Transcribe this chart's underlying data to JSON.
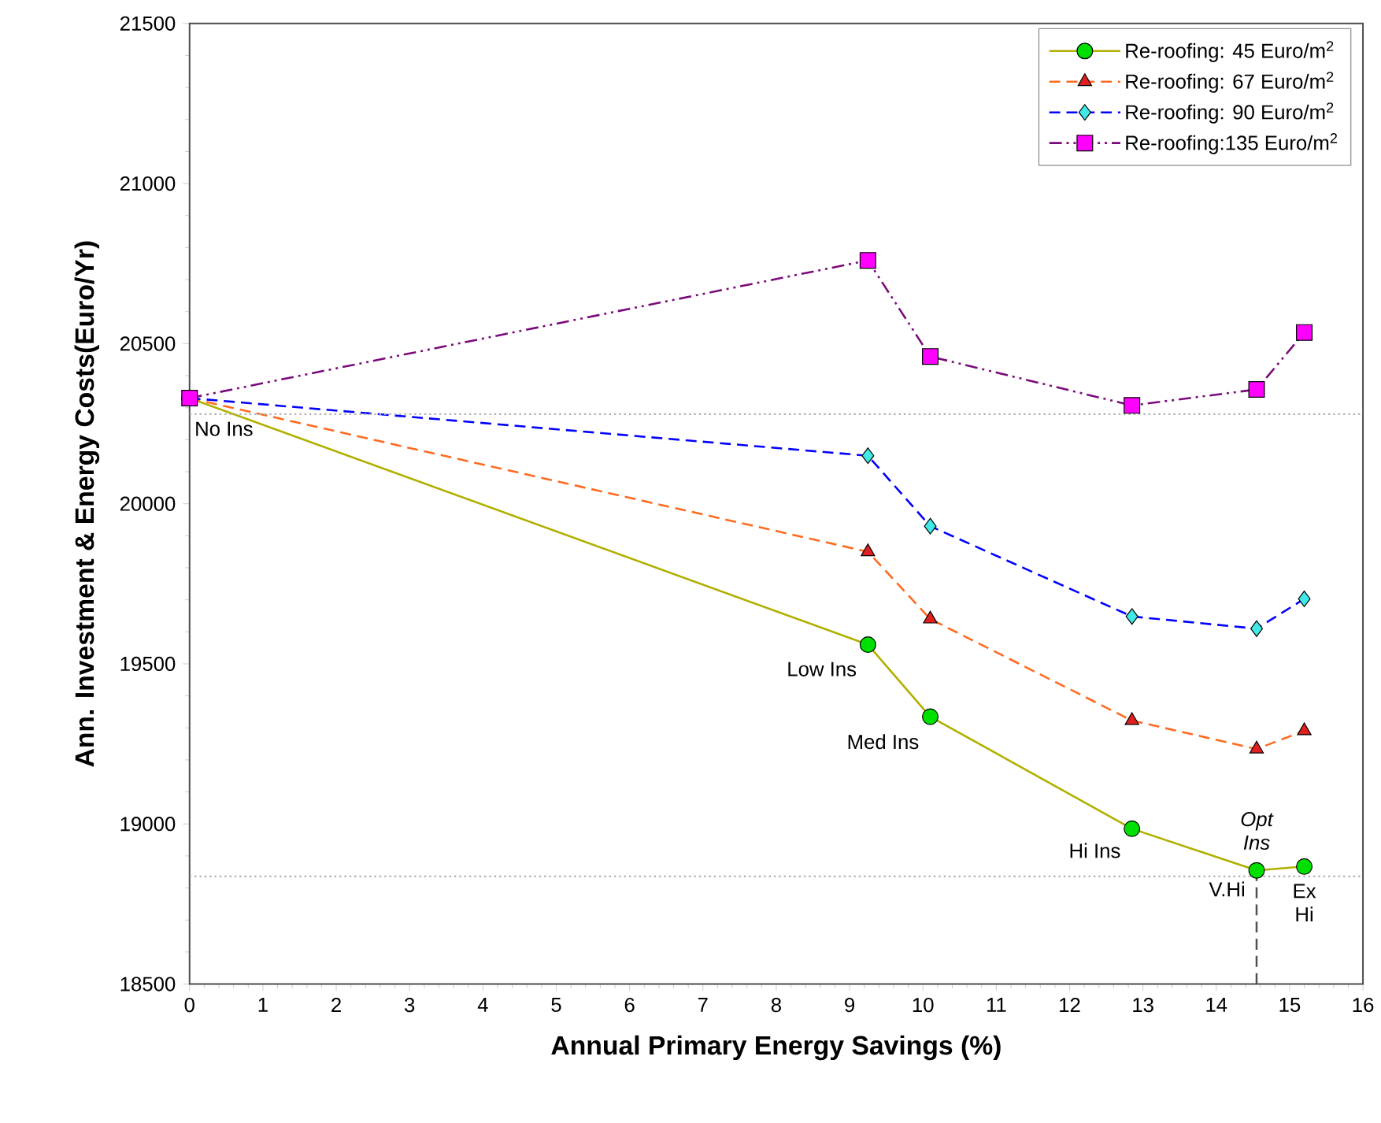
{
  "chart_data": {
    "type": "line",
    "xlabel": "Annual Primary Energy Savings (%)",
    "ylabel": "Ann. Investment & Energy Costs(Euro/Yr)",
    "xlim": [
      0,
      16
    ],
    "xticks": [
      0,
      1,
      2,
      3,
      4,
      5,
      6,
      7,
      8,
      9,
      10,
      11,
      12,
      13,
      14,
      15,
      16
    ],
    "ylim": [
      18500,
      21500
    ],
    "yticks": [
      18500,
      19000,
      19500,
      20000,
      20500,
      21000,
      21500
    ],
    "legend": "top right",
    "grid": false,
    "series": [
      {
        "name": "Re-roofing: 45 Euro/m$^{2}$",
        "color": "#b0b000",
        "line_style": "solid",
        "marker": "circle",
        "x": [
          0,
          9.25,
          10.1,
          12.85,
          14.55,
          15.2
        ],
        "values": [
          20330,
          19560,
          19335,
          18985,
          18855,
          18867
        ],
        "colors": [
          "#00e000",
          "#00e000",
          "#00e000",
          "#00e000",
          "#00e000",
          "#00e000"
        ]
      },
      {
        "name": "Re-roofing: 67 Euro/m$^{2}$",
        "color": "#ff6a20",
        "line_style": "dashed",
        "marker": "triangle",
        "x": [
          0,
          9.25,
          10.1,
          12.85,
          14.55,
          15.2
        ],
        "values": [
          20330,
          19850,
          19640,
          19323,
          19234,
          19291
        ],
        "colors": [
          "#e02020",
          "#e02020",
          "#e02020",
          "#e02020",
          "#e02020",
          "#e02020"
        ]
      },
      {
        "name": "Re-roofing: 90 Euro/m$^{2}$",
        "color": "#0000ff",
        "line_style": "dashed",
        "marker": "diamond",
        "x": [
          0,
          9.25,
          10.1,
          12.85,
          14.55,
          15.2
        ],
        "values": [
          20330,
          20150,
          19930,
          19648,
          19610,
          19703
        ],
        "colors": [
          "#40e8e8",
          "#40e8e8",
          "#40e8e8",
          "#40e8e8",
          "#40e8e8",
          "#40e8e8"
        ]
      },
      {
        "name": "Re-roofing:135 Euro/m$^{2}$",
        "color": "#7a0a7a",
        "line_style": "dashdotdotted",
        "marker": "square",
        "x": [
          0,
          9.25,
          10.1,
          12.85,
          14.55,
          15.2
        ],
        "values": [
          20330,
          20760,
          20460,
          20307,
          20357,
          20535
        ],
        "colors": [
          "#ff00ff",
          "#ff00ff",
          "#ff00ff",
          "#ff00ff",
          "#ff00ff",
          "#ff00ff"
        ]
      },
      {
        "type": "line",
        "color": "#505050",
        "line_style": "dashed",
        "marker": "none",
        "x": [
          14.55,
          14.55
        ],
        "values": [
          18500,
          18855
        ]
      }
    ],
    "ref_lines": [
      {
        "axis": "y",
        "value": 20280,
        "color": "#b0b0b0",
        "line_style": "dotted"
      },
      {
        "axis": "y",
        "value": 18836,
        "color": "#b0b0b0",
        "line_style": "dotted"
      }
    ],
    "annotations": [
      {
        "text": "No Ins",
        "x": 0,
        "y": 20330
      },
      {
        "text": "Low Ins",
        "x": 9.25,
        "y": 19560
      },
      {
        "text": "Med Ins",
        "x": 10.1,
        "y": 19335
      },
      {
        "text": "Hi Ins",
        "x": 12.85,
        "y": 18985
      },
      {
        "text": "V.Hi",
        "x": 14.55,
        "y": 18855
      },
      {
        "text": "Opt Ins",
        "x": 14.55,
        "y": 18855
      },
      {
        "text": "Ex Hi",
        "x": 15.2,
        "y": 18867
      }
    ]
  }
}
